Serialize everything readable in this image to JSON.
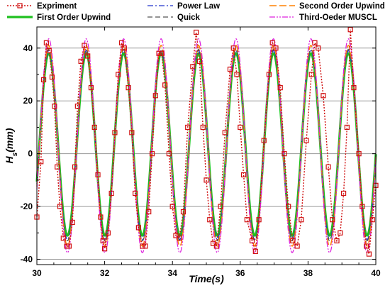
{
  "chart_data": {
    "type": "line",
    "xlabel": "Time(s)",
    "ylabel_main": "H",
    "ylabel_sub": "s",
    "ylabel_unit": "(mm)",
    "xlim": [
      30,
      40
    ],
    "ylim": [
      -42,
      48
    ],
    "xticks": [
      30,
      32,
      34,
      36,
      38,
      40
    ],
    "yticks": [
      -40,
      -20,
      0,
      20,
      40
    ],
    "grid": "horizontal",
    "legend_position": "top",
    "series": [
      {
        "name": "Expriment",
        "style": "dotted-square-markers",
        "color": "#d01010",
        "points": [
          [
            30.0,
            -24
          ],
          [
            30.12,
            -3
          ],
          [
            30.2,
            28
          ],
          [
            30.28,
            42
          ],
          [
            30.36,
            39
          ],
          [
            30.45,
            29
          ],
          [
            30.52,
            18
          ],
          [
            30.6,
            -5
          ],
          [
            30.68,
            -20
          ],
          [
            30.78,
            -32
          ],
          [
            30.88,
            -35
          ],
          [
            30.95,
            -35
          ],
          [
            31.05,
            -26
          ],
          [
            31.12,
            -5
          ],
          [
            31.2,
            18
          ],
          [
            31.3,
            35
          ],
          [
            31.4,
            41
          ],
          [
            31.5,
            37
          ],
          [
            31.6,
            25
          ],
          [
            31.7,
            10
          ],
          [
            31.8,
            -8
          ],
          [
            31.88,
            -24
          ],
          [
            31.95,
            -33
          ],
          [
            32.0,
            -36
          ],
          [
            32.1,
            -30
          ],
          [
            32.2,
            -15
          ],
          [
            32.3,
            8
          ],
          [
            32.4,
            30
          ],
          [
            32.5,
            42
          ],
          [
            32.58,
            40
          ],
          [
            32.7,
            25
          ],
          [
            32.8,
            8
          ],
          [
            32.9,
            -15
          ],
          [
            33.0,
            -28
          ],
          [
            33.12,
            -35
          ],
          [
            33.2,
            -35
          ],
          [
            33.3,
            -22
          ],
          [
            33.4,
            0
          ],
          [
            33.5,
            22
          ],
          [
            33.6,
            38
          ],
          [
            33.68,
            38
          ],
          [
            33.78,
            26
          ],
          [
            33.9,
            0
          ],
          [
            34.0,
            -20
          ],
          [
            34.1,
            -31
          ],
          [
            34.2,
            -32
          ],
          [
            34.32,
            -22
          ],
          [
            34.45,
            10
          ],
          [
            34.6,
            33
          ],
          [
            34.7,
            46
          ],
          [
            34.8,
            35
          ],
          [
            34.9,
            10
          ],
          [
            35.0,
            -10
          ],
          [
            35.1,
            -25
          ],
          [
            35.2,
            -34
          ],
          [
            35.3,
            -35
          ],
          [
            35.42,
            -20
          ],
          [
            35.55,
            8
          ],
          [
            35.7,
            32
          ],
          [
            35.8,
            40
          ],
          [
            35.9,
            30
          ],
          [
            36.0,
            10
          ],
          [
            36.1,
            -8
          ],
          [
            36.2,
            -25
          ],
          [
            36.35,
            -33
          ],
          [
            36.45,
            -37
          ],
          [
            36.55,
            -25
          ],
          [
            36.7,
            5
          ],
          [
            36.85,
            30
          ],
          [
            36.95,
            42
          ],
          [
            37.05,
            40
          ],
          [
            37.18,
            25
          ],
          [
            37.3,
            0
          ],
          [
            37.42,
            -20
          ],
          [
            37.55,
            -33
          ],
          [
            37.68,
            -35
          ],
          [
            37.8,
            -25
          ],
          [
            37.95,
            5
          ],
          [
            38.1,
            30
          ],
          [
            38.2,
            42
          ],
          [
            38.3,
            40
          ],
          [
            38.45,
            22
          ],
          [
            38.6,
            -5
          ],
          [
            38.72,
            -25
          ],
          [
            38.85,
            -33
          ],
          [
            38.95,
            -30
          ],
          [
            39.05,
            -15
          ],
          [
            39.15,
            10
          ],
          [
            39.25,
            47
          ],
          [
            39.35,
            25
          ],
          [
            39.5,
            0
          ],
          [
            39.6,
            -20
          ],
          [
            39.72,
            -35
          ],
          [
            39.8,
            -38
          ],
          [
            39.9,
            -25
          ],
          [
            40.0,
            -12
          ]
        ]
      },
      {
        "name": "First Order Upwind",
        "style": "solid-thick",
        "color": "#1ec01e",
        "amp": [
          38.0,
          -31.0
        ]
      },
      {
        "name": "Power Law",
        "style": "dash-dot",
        "color": "#2233cc",
        "amp": [
          39.0,
          -32.5
        ]
      },
      {
        "name": "Quick",
        "style": "dashed",
        "color": "#555555",
        "amp": [
          39.5,
          -33.0
        ]
      },
      {
        "name": "Second Order Upwind",
        "style": "long-dash",
        "color": "#ff8000",
        "amp": [
          41.0,
          -35.0
        ]
      },
      {
        "name": "Third-Oeder MUSCL",
        "style": "dash-dot-dot",
        "color": "#dd22dd",
        "amp": [
          43.5,
          -37.5
        ]
      }
    ],
    "period": 1.105,
    "phase_peak": 30.35
  }
}
